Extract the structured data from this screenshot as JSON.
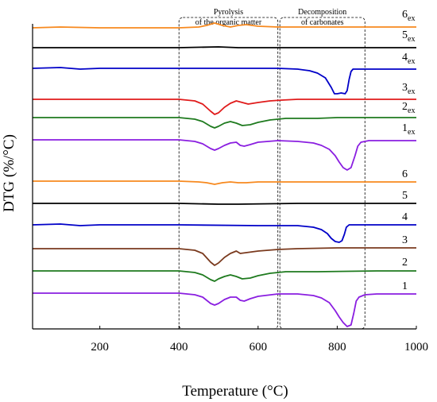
{
  "chart_data": {
    "type": "line",
    "xlabel": "Temperature (°C)",
    "ylabel": "DTG (%/°C)",
    "xlim": [
      30,
      1000
    ],
    "xticks": [
      200,
      400,
      600,
      800,
      1000
    ],
    "grid": false,
    "regions": [
      {
        "label_line1": "Pyrolysis",
        "label_line2": "of the organic matter",
        "x_range": [
          400,
          650
        ]
      },
      {
        "label_line1": "Decomposition",
        "label_line2": "of carbonates",
        "x_range": [
          655,
          870
        ]
      }
    ],
    "series": [
      {
        "name": "6",
        "sub": "ex",
        "color": "#f7891e",
        "baseline": 35,
        "points": [
          [
            30,
            0
          ],
          [
            100,
            -1
          ],
          [
            200,
            0
          ],
          [
            300,
            0
          ],
          [
            400,
            0
          ],
          [
            450,
            -1
          ],
          [
            470,
            -3
          ],
          [
            490,
            -6
          ],
          [
            510,
            -3
          ],
          [
            530,
            -1
          ],
          [
            550,
            -3
          ],
          [
            570,
            -4
          ],
          [
            600,
            -2
          ],
          [
            650,
            -1
          ],
          [
            700,
            -1
          ],
          [
            800,
            -1
          ],
          [
            900,
            -1
          ],
          [
            1000,
            -1
          ]
        ]
      },
      {
        "name": "5",
        "sub": "ex",
        "color": "#000000",
        "baseline": 60,
        "points": [
          [
            30,
            0
          ],
          [
            200,
            0
          ],
          [
            400,
            0
          ],
          [
            500,
            -1
          ],
          [
            550,
            0
          ],
          [
            700,
            0
          ],
          [
            850,
            0
          ],
          [
            1000,
            0
          ]
        ]
      },
      {
        "name": "4",
        "sub": "ex",
        "color": "#0000c8",
        "baseline": 86,
        "points": [
          [
            30,
            0
          ],
          [
            100,
            -1
          ],
          [
            150,
            1
          ],
          [
            200,
            0
          ],
          [
            300,
            0
          ],
          [
            400,
            0
          ],
          [
            500,
            0
          ],
          [
            600,
            0
          ],
          [
            650,
            0
          ],
          [
            700,
            1
          ],
          [
            730,
            3
          ],
          [
            750,
            6
          ],
          [
            770,
            12
          ],
          [
            785,
            24
          ],
          [
            793,
            32
          ],
          [
            800,
            32
          ],
          [
            810,
            31
          ],
          [
            820,
            32
          ],
          [
            825,
            28
          ],
          [
            830,
            14
          ],
          [
            835,
            4
          ],
          [
            840,
            1
          ],
          [
            900,
            1
          ],
          [
            1000,
            1
          ]
        ]
      },
      {
        "name": "3",
        "sub": "ex",
        "color": "#e01b1b",
        "baseline": 125,
        "points": [
          [
            30,
            0
          ],
          [
            200,
            0
          ],
          [
            400,
            0
          ],
          [
            440,
            2
          ],
          [
            460,
            6
          ],
          [
            480,
            15
          ],
          [
            490,
            19
          ],
          [
            500,
            17
          ],
          [
            515,
            10
          ],
          [
            530,
            5
          ],
          [
            545,
            2
          ],
          [
            560,
            4
          ],
          [
            575,
            6
          ],
          [
            600,
            4
          ],
          [
            630,
            2
          ],
          [
            660,
            1
          ],
          [
            700,
            0
          ],
          [
            800,
            0
          ],
          [
            1000,
            0
          ]
        ]
      },
      {
        "name": "2",
        "sub": "ex",
        "color": "#1e7a1e",
        "baseline": 148,
        "points": [
          [
            30,
            0
          ],
          [
            200,
            0
          ],
          [
            400,
            0
          ],
          [
            440,
            2
          ],
          [
            460,
            5
          ],
          [
            480,
            11
          ],
          [
            490,
            13
          ],
          [
            500,
            11
          ],
          [
            515,
            7
          ],
          [
            530,
            5
          ],
          [
            545,
            7
          ],
          [
            560,
            10
          ],
          [
            580,
            9
          ],
          [
            600,
            6
          ],
          [
            630,
            3
          ],
          [
            670,
            1
          ],
          [
            750,
            1
          ],
          [
            800,
            0
          ],
          [
            900,
            0
          ],
          [
            1000,
            0
          ]
        ]
      },
      {
        "name": "1",
        "sub": "ex",
        "color": "#8a1ee0",
        "baseline": 176,
        "points": [
          [
            30,
            0
          ],
          [
            200,
            0
          ],
          [
            400,
            0
          ],
          [
            440,
            2
          ],
          [
            460,
            5
          ],
          [
            480,
            11
          ],
          [
            490,
            13
          ],
          [
            500,
            11
          ],
          [
            515,
            7
          ],
          [
            530,
            4
          ],
          [
            545,
            3
          ],
          [
            555,
            7
          ],
          [
            565,
            8
          ],
          [
            580,
            6
          ],
          [
            600,
            3
          ],
          [
            650,
            1
          ],
          [
            700,
            2
          ],
          [
            740,
            4
          ],
          [
            760,
            7
          ],
          [
            780,
            12
          ],
          [
            795,
            20
          ],
          [
            805,
            28
          ],
          [
            815,
            35
          ],
          [
            825,
            38
          ],
          [
            835,
            35
          ],
          [
            845,
            20
          ],
          [
            852,
            8
          ],
          [
            860,
            3
          ],
          [
            880,
            1
          ],
          [
            1000,
            1
          ]
        ]
      },
      {
        "name": "6",
        "sub": "",
        "color": "#f7891e",
        "baseline": 228,
        "points": [
          [
            30,
            0
          ],
          [
            200,
            0
          ],
          [
            400,
            0
          ],
          [
            450,
            1
          ],
          [
            470,
            2
          ],
          [
            490,
            4
          ],
          [
            510,
            2
          ],
          [
            530,
            1
          ],
          [
            550,
            2
          ],
          [
            570,
            2
          ],
          [
            600,
            1
          ],
          [
            700,
            1
          ],
          [
            850,
            1
          ],
          [
            1000,
            1
          ]
        ]
      },
      {
        "name": "5",
        "sub": "",
        "color": "#000000",
        "baseline": 256,
        "points": [
          [
            30,
            0
          ],
          [
            200,
            0
          ],
          [
            400,
            0
          ],
          [
            500,
            1
          ],
          [
            550,
            1
          ],
          [
            700,
            0
          ],
          [
            850,
            0
          ],
          [
            1000,
            0
          ]
        ]
      },
      {
        "name": "4",
        "sub": "",
        "color": "#0000c8",
        "baseline": 283,
        "points": [
          [
            30,
            0
          ],
          [
            100,
            -1
          ],
          [
            150,
            1
          ],
          [
            200,
            0
          ],
          [
            400,
            0
          ],
          [
            600,
            1
          ],
          [
            700,
            1
          ],
          [
            740,
            3
          ],
          [
            760,
            6
          ],
          [
            775,
            11
          ],
          [
            785,
            17
          ],
          [
            795,
            21
          ],
          [
            805,
            22
          ],
          [
            812,
            20
          ],
          [
            818,
            12
          ],
          [
            823,
            3
          ],
          [
            830,
            0
          ],
          [
            900,
            0
          ],
          [
            1000,
            0
          ]
        ]
      },
      {
        "name": "3",
        "sub": "",
        "color": "#7a3a1e",
        "baseline": 313,
        "points": [
          [
            30,
            0
          ],
          [
            200,
            0
          ],
          [
            400,
            0
          ],
          [
            440,
            2
          ],
          [
            460,
            6
          ],
          [
            480,
            17
          ],
          [
            490,
            21
          ],
          [
            500,
            18
          ],
          [
            515,
            11
          ],
          [
            530,
            6
          ],
          [
            545,
            3
          ],
          [
            555,
            6
          ],
          [
            570,
            5
          ],
          [
            600,
            3
          ],
          [
            650,
            1
          ],
          [
            700,
            0
          ],
          [
            800,
            -1
          ],
          [
            900,
            -1
          ],
          [
            1000,
            -1
          ]
        ]
      },
      {
        "name": "2",
        "sub": "",
        "color": "#1e7a1e",
        "baseline": 341,
        "points": [
          [
            30,
            0
          ],
          [
            200,
            0
          ],
          [
            400,
            0
          ],
          [
            440,
            2
          ],
          [
            460,
            5
          ],
          [
            480,
            11
          ],
          [
            490,
            13
          ],
          [
            500,
            10
          ],
          [
            515,
            7
          ],
          [
            530,
            5
          ],
          [
            545,
            7
          ],
          [
            560,
            10
          ],
          [
            580,
            9
          ],
          [
            600,
            6
          ],
          [
            630,
            3
          ],
          [
            670,
            1
          ],
          [
            750,
            1
          ],
          [
            900,
            0
          ],
          [
            1000,
            0
          ]
        ]
      },
      {
        "name": "1",
        "sub": "",
        "color": "#8a1ee0",
        "baseline": 369,
        "points": [
          [
            30,
            0
          ],
          [
            200,
            0
          ],
          [
            400,
            0
          ],
          [
            440,
            2
          ],
          [
            460,
            5
          ],
          [
            480,
            13
          ],
          [
            490,
            15
          ],
          [
            500,
            13
          ],
          [
            515,
            8
          ],
          [
            530,
            5
          ],
          [
            545,
            5
          ],
          [
            555,
            9
          ],
          [
            565,
            10
          ],
          [
            580,
            7
          ],
          [
            600,
            4
          ],
          [
            650,
            1
          ],
          [
            700,
            1
          ],
          [
            740,
            3
          ],
          [
            760,
            6
          ],
          [
            780,
            12
          ],
          [
            795,
            22
          ],
          [
            805,
            30
          ],
          [
            815,
            37
          ],
          [
            825,
            42
          ],
          [
            835,
            40
          ],
          [
            842,
            25
          ],
          [
            848,
            10
          ],
          [
            855,
            5
          ],
          [
            870,
            2
          ],
          [
            900,
            1
          ],
          [
            1000,
            1
          ]
        ]
      }
    ],
    "labels": [
      {
        "name": "6",
        "sub": "ex"
      },
      {
        "name": "5",
        "sub": "ex"
      },
      {
        "name": "4",
        "sub": "ex"
      },
      {
        "name": "3",
        "sub": "ex"
      },
      {
        "name": "2",
        "sub": "ex"
      },
      {
        "name": "1",
        "sub": "ex"
      },
      {
        "name": "6",
        "sub": ""
      },
      {
        "name": "5",
        "sub": ""
      },
      {
        "name": "4",
        "sub": ""
      },
      {
        "name": "3",
        "sub": ""
      },
      {
        "name": "2",
        "sub": ""
      },
      {
        "name": "1",
        "sub": ""
      }
    ]
  }
}
